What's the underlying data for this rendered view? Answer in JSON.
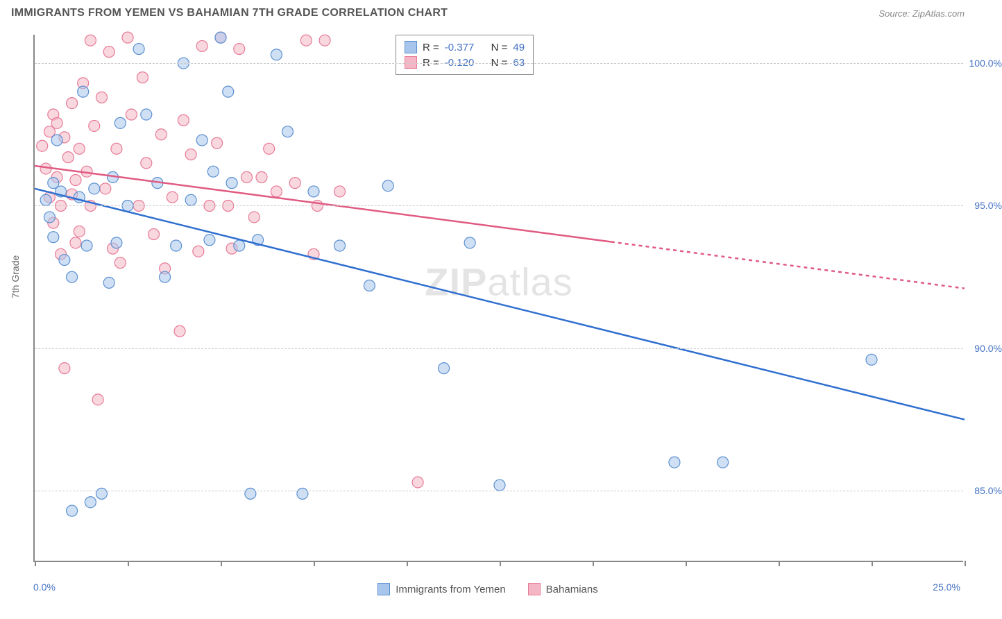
{
  "title": "IMMIGRANTS FROM YEMEN VS BAHAMIAN 7TH GRADE CORRELATION CHART",
  "source": "Source: ZipAtlas.com",
  "watermark_a": "ZIP",
  "watermark_b": "atlas",
  "y_axis_title": "7th Grade",
  "chart": {
    "type": "scatter-with-regression",
    "background_color": "#ffffff",
    "grid_color": "#cccccc",
    "axis_color": "#888888",
    "tick_label_color": "#4472c4",
    "xlim": [
      0,
      25
    ],
    "ylim": [
      82.5,
      101
    ],
    "x_ticks": [
      0,
      2.5,
      5,
      7.5,
      10,
      12.5,
      15,
      17.5,
      20,
      22.5,
      25
    ],
    "x_tick_labels_shown": {
      "0": "0.0%",
      "25": "25.0%"
    },
    "y_gridlines": [
      85,
      90,
      95,
      100
    ],
    "y_tick_labels": {
      "85": "85.0%",
      "90": "90.0%",
      "95": "95.0%",
      "100": "100.0%"
    },
    "marker_radius": 8,
    "marker_opacity": 0.55,
    "line_width": 2.5,
    "series": [
      {
        "key": "yemen",
        "label": "Immigrants from Yemen",
        "color_fill": "#a8c6ec",
        "color_stroke": "#5b8fd0",
        "line_color": "#2f6fd0",
        "R": "-0.377",
        "N": "49",
        "regression": {
          "x1": 0,
          "y1": 95.6,
          "x2": 25,
          "y2": 87.5,
          "dash_after_x": null
        },
        "points": [
          [
            0.3,
            95.2
          ],
          [
            0.4,
            94.6
          ],
          [
            0.5,
            95.8
          ],
          [
            0.5,
            93.9
          ],
          [
            0.6,
            97.3
          ],
          [
            0.7,
            95.5
          ],
          [
            0.8,
            93.1
          ],
          [
            1.0,
            92.5
          ],
          [
            1.0,
            84.3
          ],
          [
            1.2,
            95.3
          ],
          [
            1.3,
            99.0
          ],
          [
            1.4,
            93.6
          ],
          [
            1.5,
            84.6
          ],
          [
            1.6,
            95.6
          ],
          [
            1.8,
            84.9
          ],
          [
            2.0,
            92.3
          ],
          [
            2.1,
            96.0
          ],
          [
            2.2,
            93.7
          ],
          [
            2.5,
            95.0
          ],
          [
            2.8,
            100.5
          ],
          [
            3.0,
            98.2
          ],
          [
            3.3,
            95.8
          ],
          [
            3.5,
            92.5
          ],
          [
            3.8,
            93.6
          ],
          [
            4.0,
            100.0
          ],
          [
            4.2,
            95.2
          ],
          [
            4.5,
            97.3
          ],
          [
            4.7,
            93.8
          ],
          [
            5.0,
            100.9
          ],
          [
            5.2,
            99.0
          ],
          [
            5.3,
            95.8
          ],
          [
            5.5,
            93.6
          ],
          [
            5.8,
            84.9
          ],
          [
            6.0,
            93.8
          ],
          [
            6.5,
            100.3
          ],
          [
            6.8,
            97.6
          ],
          [
            7.2,
            84.9
          ],
          [
            7.5,
            95.5
          ],
          [
            8.2,
            93.6
          ],
          [
            9.0,
            92.2
          ],
          [
            9.5,
            95.7
          ],
          [
            11.0,
            89.3
          ],
          [
            11.7,
            93.7
          ],
          [
            12.5,
            85.2
          ],
          [
            17.2,
            86.0
          ],
          [
            18.5,
            86.0
          ],
          [
            22.5,
            89.6
          ],
          [
            4.8,
            96.2
          ],
          [
            2.3,
            97.9
          ]
        ]
      },
      {
        "key": "bahamians",
        "label": "Bahamians",
        "color_fill": "#f4b6c5",
        "color_stroke": "#e77a96",
        "line_color": "#e05a82",
        "R": "-0.120",
        "N": "63",
        "regression": {
          "x1": 0,
          "y1": 96.4,
          "x2": 25,
          "y2": 92.1,
          "dash_after_x": 15.5
        },
        "points": [
          [
            0.2,
            97.1
          ],
          [
            0.3,
            96.3
          ],
          [
            0.4,
            97.6
          ],
          [
            0.4,
            95.3
          ],
          [
            0.5,
            98.2
          ],
          [
            0.5,
            94.4
          ],
          [
            0.6,
            97.9
          ],
          [
            0.6,
            96.0
          ],
          [
            0.7,
            95.0
          ],
          [
            0.7,
            93.3
          ],
          [
            0.8,
            97.4
          ],
          [
            0.8,
            89.3
          ],
          [
            0.9,
            96.7
          ],
          [
            1.0,
            98.6
          ],
          [
            1.0,
            95.4
          ],
          [
            1.1,
            93.7
          ],
          [
            1.2,
            97.0
          ],
          [
            1.2,
            94.1
          ],
          [
            1.3,
            99.3
          ],
          [
            1.4,
            96.2
          ],
          [
            1.5,
            100.8
          ],
          [
            1.5,
            95.0
          ],
          [
            1.6,
            97.8
          ],
          [
            1.7,
            88.2
          ],
          [
            1.8,
            98.8
          ],
          [
            1.9,
            95.6
          ],
          [
            2.0,
            100.4
          ],
          [
            2.1,
            93.5
          ],
          [
            2.2,
            97.0
          ],
          [
            2.3,
            93.0
          ],
          [
            2.5,
            100.9
          ],
          [
            2.6,
            98.2
          ],
          [
            2.8,
            95.0
          ],
          [
            2.9,
            99.5
          ],
          [
            3.0,
            96.5
          ],
          [
            3.2,
            94.0
          ],
          [
            3.4,
            97.5
          ],
          [
            3.5,
            92.8
          ],
          [
            3.7,
            95.3
          ],
          [
            3.9,
            90.6
          ],
          [
            4.0,
            98.0
          ],
          [
            4.2,
            96.8
          ],
          [
            4.4,
            93.4
          ],
          [
            4.5,
            100.6
          ],
          [
            4.7,
            95.0
          ],
          [
            4.9,
            97.2
          ],
          [
            5.0,
            100.9
          ],
          [
            5.2,
            95.0
          ],
          [
            5.3,
            93.5
          ],
          [
            5.5,
            100.5
          ],
          [
            5.7,
            96.0
          ],
          [
            5.9,
            94.6
          ],
          [
            6.1,
            96.0
          ],
          [
            6.3,
            97.0
          ],
          [
            6.5,
            95.5
          ],
          [
            7.0,
            95.8
          ],
          [
            7.3,
            100.8
          ],
          [
            7.5,
            93.3
          ],
          [
            7.6,
            95.0
          ],
          [
            7.8,
            100.8
          ],
          [
            8.2,
            95.5
          ],
          [
            10.3,
            85.3
          ],
          [
            1.1,
            95.9
          ]
        ]
      }
    ]
  },
  "legend_box": {
    "r_label": "R =",
    "n_label": "N ="
  }
}
